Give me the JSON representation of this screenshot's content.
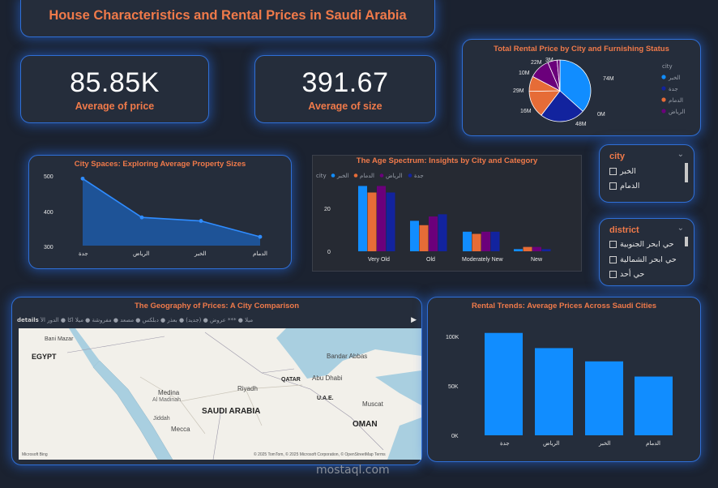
{
  "header": {
    "title": "House Characteristics and Rental Prices in Saudi Arabia"
  },
  "kpis": [
    {
      "value": "85.85K",
      "label": "Average of price"
    },
    {
      "value": "391.67",
      "label": "Average of size"
    }
  ],
  "pie": {
    "title": "Total Rental Price by City and Furnishing Status",
    "legend_title": "city",
    "legend": [
      {
        "name": "الخبر",
        "color": "#118dff"
      },
      {
        "name": "جدة",
        "color": "#12239e"
      },
      {
        "name": "الدمام",
        "color": "#e66c37"
      },
      {
        "name": "الرياض",
        "color": "#6b007b"
      }
    ],
    "labels": [
      "74M",
      "0M",
      "48M",
      "16M",
      "29M",
      "10M",
      "22M",
      "3M"
    ]
  },
  "slicer_city": {
    "title": "city",
    "items": [
      "الخبر",
      "الدمام"
    ]
  },
  "slicer_district": {
    "title": "district",
    "items": [
      "حي ابحر الجنوبية",
      "حي ابحر الشمالية",
      "حي أحد"
    ]
  },
  "line_chart": {
    "title": "City Spaces: Exploring Average Property Sizes",
    "y_ticks": [
      "500",
      "400",
      "300"
    ],
    "categories": [
      "جدة",
      "الرياض",
      "الخبر",
      "الدمام"
    ]
  },
  "age_chart": {
    "title": "The Age Spectrum: Insights by City and Category",
    "legend_title": "city",
    "legend": [
      "الخبر",
      "الدمام",
      "الرياض",
      "جدة"
    ],
    "y_ticks": [
      "20",
      "0"
    ],
    "categories": [
      "Very Old",
      "Old",
      "Moderately New",
      "New"
    ]
  },
  "map": {
    "title": "The Geography of Prices: A City Comparison",
    "legend_title": "details",
    "legend_text": "ميلا ● *** عروض ● (جديد) ● بعذر ● دبلكس ● مصعد ● مفروشة ● ميلا اكا ● الدور الأ",
    "labels": {
      "egypt": "EGYPT",
      "saudi": "SAUDI ARABIA",
      "oman": "OMAN",
      "qatar": "QATAR",
      "uae": "U.A.E.",
      "riyadh": "Riyadh",
      "medina": "Medina",
      "almadinah": "Al Madinah",
      "mecca": "Mecca",
      "jiddah": "Jiddah",
      "abudhabi": "Abu Dhabi",
      "bandar": "Bandar Abbas",
      "muscat": "Muscat",
      "banimazar": "Bani Mazar"
    },
    "attribution": "© 2025 TomTom, © 2025 Microsoft Corporation, © OpenStreetMap  Terms",
    "bing": "Microsoft Bing"
  },
  "bar_chart": {
    "title": "Rental Trends: Average Prices Across Saudi Cities",
    "y_ticks": [
      "100K",
      "50K",
      "0K"
    ],
    "categories": [
      "جدة",
      "الرياض",
      "الخبر",
      "الدمام"
    ]
  },
  "watermark": "mostaql.com",
  "chart_data": [
    {
      "type": "pie",
      "title": "Total Rental Price by City and Furnishing Status",
      "series": [
        {
          "name": "الخبر",
          "values": [
            74
          ]
        },
        {
          "name": "جدة",
          "values": [
            48
          ]
        },
        {
          "name": "الدمام",
          "values": [
            29,
            16
          ]
        },
        {
          "name": "الرياض",
          "values": [
            22,
            10,
            3
          ]
        }
      ]
    },
    {
      "type": "area",
      "title": "City Spaces: Exploring Average Property Sizes",
      "categories": [
        "جدة",
        "الرياض",
        "الخبر",
        "الدمام"
      ],
      "values": [
        490,
        380,
        370,
        325
      ],
      "ylim": [
        280,
        520
      ]
    },
    {
      "type": "bar",
      "title": "The Age Spectrum: Insights by City and Category",
      "categories": [
        "Very Old",
        "Old",
        "Moderately New",
        "New"
      ],
      "series": [
        {
          "name": "الخبر",
          "values": [
            30,
            14,
            9,
            1
          ]
        },
        {
          "name": "الدمام",
          "values": [
            27,
            12,
            8,
            2
          ]
        },
        {
          "name": "الرياض",
          "values": [
            30,
            16,
            9,
            2
          ]
        },
        {
          "name": "جدة",
          "values": [
            27,
            17,
            9,
            1
          ]
        }
      ],
      "ylim": [
        0,
        35
      ]
    },
    {
      "type": "bar",
      "title": "Rental Trends: Average Prices Across Saudi Cities",
      "categories": [
        "جدة",
        "الرياض",
        "الخبر",
        "الدمام"
      ],
      "values": [
        108000,
        92000,
        78000,
        62000
      ],
      "ylim": [
        0,
        130000
      ]
    }
  ]
}
